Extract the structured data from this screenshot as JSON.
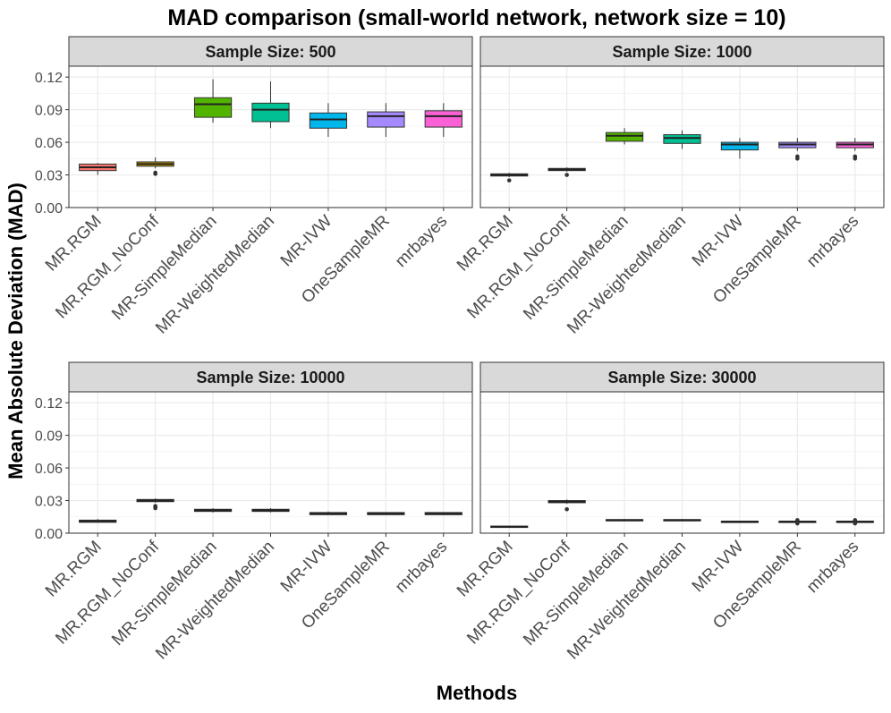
{
  "chart_data": {
    "type": "boxplot",
    "title": "MAD comparison (small-world network, network size = 10)",
    "xlabel": "Methods",
    "ylabel": "Mean Absolute Deviation (MAD)",
    "ylim": [
      0,
      0.13
    ],
    "yticks": [
      0.0,
      0.03,
      0.06,
      0.09,
      0.12
    ],
    "ytick_labels": [
      "0.00",
      "0.03",
      "0.06",
      "0.09",
      "0.12"
    ],
    "grid": true,
    "categories": [
      "MR.RGM",
      "MR.RGM_NoConf",
      "MR-SimpleMedian",
      "MR-WeightedMedian",
      "MR-IVW",
      "OneSampleMR",
      "mrbayes"
    ],
    "colors": [
      "#F8766D",
      "#C49A00",
      "#53B400",
      "#00C094",
      "#00B6EB",
      "#A58AFF",
      "#FB61D7"
    ],
    "panels": [
      {
        "label": "Sample Size: 500",
        "boxes": [
          {
            "whisker_low": 0.03,
            "q1": 0.034,
            "median": 0.037,
            "q3": 0.04,
            "whisker_high": 0.041,
            "outliers": []
          },
          {
            "whisker_low": 0.036,
            "q1": 0.038,
            "median": 0.04,
            "q3": 0.042,
            "whisker_high": 0.046,
            "outliers": [
              0.031,
              0.032
            ]
          },
          {
            "whisker_low": 0.078,
            "q1": 0.083,
            "median": 0.095,
            "q3": 0.101,
            "whisker_high": 0.118,
            "outliers": []
          },
          {
            "whisker_low": 0.073,
            "q1": 0.079,
            "median": 0.09,
            "q3": 0.096,
            "whisker_high": 0.116,
            "outliers": []
          },
          {
            "whisker_low": 0.065,
            "q1": 0.073,
            "median": 0.081,
            "q3": 0.087,
            "whisker_high": 0.096,
            "outliers": []
          },
          {
            "whisker_low": 0.065,
            "q1": 0.074,
            "median": 0.084,
            "q3": 0.088,
            "whisker_high": 0.096,
            "outliers": []
          },
          {
            "whisker_low": 0.065,
            "q1": 0.074,
            "median": 0.084,
            "q3": 0.089,
            "whisker_high": 0.096,
            "outliers": []
          }
        ]
      },
      {
        "label": "Sample Size: 1000",
        "boxes": [
          {
            "whisker_low": 0.028,
            "q1": 0.029,
            "median": 0.03,
            "q3": 0.031,
            "whisker_high": 0.032,
            "outliers": [
              0.025
            ]
          },
          {
            "whisker_low": 0.033,
            "q1": 0.034,
            "median": 0.035,
            "q3": 0.036,
            "whisker_high": 0.037,
            "outliers": [
              0.03
            ]
          },
          {
            "whisker_low": 0.058,
            "q1": 0.061,
            "median": 0.066,
            "q3": 0.069,
            "whisker_high": 0.073,
            "outliers": []
          },
          {
            "whisker_low": 0.054,
            "q1": 0.059,
            "median": 0.064,
            "q3": 0.067,
            "whisker_high": 0.071,
            "outliers": []
          },
          {
            "whisker_low": 0.045,
            "q1": 0.053,
            "median": 0.058,
            "q3": 0.06,
            "whisker_high": 0.064,
            "outliers": []
          },
          {
            "whisker_low": 0.052,
            "q1": 0.055,
            "median": 0.058,
            "q3": 0.06,
            "whisker_high": 0.064,
            "outliers": [
              0.047,
              0.045
            ]
          },
          {
            "whisker_low": 0.052,
            "q1": 0.055,
            "median": 0.058,
            "q3": 0.06,
            "whisker_high": 0.064,
            "outliers": [
              0.047,
              0.045
            ]
          }
        ]
      },
      {
        "label": "Sample Size: 10000",
        "boxes": [
          {
            "whisker_low": 0.01,
            "q1": 0.01,
            "median": 0.011,
            "q3": 0.012,
            "whisker_high": 0.013,
            "outliers": []
          },
          {
            "whisker_low": 0.028,
            "q1": 0.029,
            "median": 0.03,
            "q3": 0.031,
            "whisker_high": 0.032,
            "outliers": [
              0.025,
              0.024,
              0.023
            ]
          },
          {
            "whisker_low": 0.019,
            "q1": 0.02,
            "median": 0.021,
            "q3": 0.022,
            "whisker_high": 0.023,
            "outliers": []
          },
          {
            "whisker_low": 0.019,
            "q1": 0.02,
            "median": 0.021,
            "q3": 0.022,
            "whisker_high": 0.023,
            "outliers": []
          },
          {
            "whisker_low": 0.017,
            "q1": 0.017,
            "median": 0.018,
            "q3": 0.019,
            "whisker_high": 0.02,
            "outliers": []
          },
          {
            "whisker_low": 0.017,
            "q1": 0.017,
            "median": 0.018,
            "q3": 0.019,
            "whisker_high": 0.019,
            "outliers": []
          },
          {
            "whisker_low": 0.017,
            "q1": 0.017,
            "median": 0.018,
            "q3": 0.019,
            "whisker_high": 0.019,
            "outliers": []
          }
        ]
      },
      {
        "label": "Sample Size: 30000",
        "boxes": [
          {
            "whisker_low": 0.005,
            "q1": 0.0055,
            "median": 0.006,
            "q3": 0.0065,
            "whisker_high": 0.007,
            "outliers": []
          },
          {
            "whisker_low": 0.027,
            "q1": 0.028,
            "median": 0.029,
            "q3": 0.03,
            "whisker_high": 0.031,
            "outliers": [
              0.022
            ]
          },
          {
            "whisker_low": 0.011,
            "q1": 0.0115,
            "median": 0.012,
            "q3": 0.0125,
            "whisker_high": 0.013,
            "outliers": []
          },
          {
            "whisker_low": 0.011,
            "q1": 0.0115,
            "median": 0.012,
            "q3": 0.0125,
            "whisker_high": 0.013,
            "outliers": []
          },
          {
            "whisker_low": 0.01,
            "q1": 0.0103,
            "median": 0.0107,
            "q3": 0.011,
            "whisker_high": 0.0115,
            "outliers": []
          },
          {
            "whisker_low": 0.0095,
            "q1": 0.0102,
            "median": 0.0107,
            "q3": 0.011,
            "whisker_high": 0.0115,
            "outliers": [
              0.012,
              0.009
            ]
          },
          {
            "whisker_low": 0.0095,
            "q1": 0.0102,
            "median": 0.0107,
            "q3": 0.011,
            "whisker_high": 0.0115,
            "outliers": [
              0.012,
              0.009
            ]
          }
        ]
      }
    ]
  }
}
